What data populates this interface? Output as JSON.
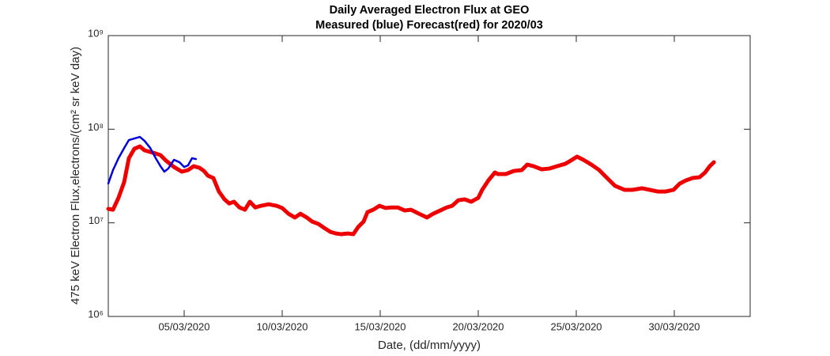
{
  "chart_data": {
    "type": "line",
    "title": "Daily Averaged Electron Flux at GEO",
    "subtitle": "Measured (blue) Forecast(red) for 2020/03",
    "x_label": "Date, (dd/mm/yyyy)",
    "y_label": "475 keV Electron Flux,electrons/(cm² sr keV day)",
    "log_y": true,
    "xlim": [
      1.13,
      33.87
    ],
    "xticks": [
      {
        "value": 5,
        "label": "05/03/2020"
      },
      {
        "value": 10,
        "label": "10/03/2020"
      },
      {
        "value": 15,
        "label": "15/03/2020"
      },
      {
        "value": 20,
        "label": "20/03/2020"
      },
      {
        "value": 25,
        "label": "25/03/2020"
      },
      {
        "value": 30,
        "label": "30/03/2020"
      }
    ],
    "ylim": [
      1000000,
      1000000000
    ],
    "yticks": [
      {
        "value": 1000000,
        "label": "10⁶"
      },
      {
        "value": 10000000,
        "label": "10⁷"
      },
      {
        "value": 100000000,
        "label": "10⁸"
      },
      {
        "value": 1000000000,
        "label": "10⁹"
      }
    ],
    "series": [
      {
        "name": "Measured",
        "color": "#0000dd",
        "width": 2.5,
        "x": [
          1.13,
          1.37,
          1.65,
          1.94,
          2.18,
          2.46,
          2.74,
          2.98,
          3.27,
          3.55,
          3.79,
          3.99,
          4.19,
          4.48,
          4.76,
          5.0,
          5.2,
          5.4,
          5.6
        ],
        "values": [
          26300000,
          36600000,
          49000000,
          63000000,
          76600000,
          79600000,
          82800000,
          75100000,
          63000000,
          49000000,
          40300000,
          35200000,
          38000000,
          47100000,
          44400000,
          39500000,
          41100000,
          49000000,
          48000000
        ]
      },
      {
        "name": "Forecast",
        "color": "#ee0000",
        "width": 5,
        "x": [
          1.13,
          1.37,
          1.65,
          1.94,
          2.18,
          2.46,
          2.74,
          2.98,
          3.27,
          3.55,
          3.79,
          4.07,
          4.48,
          4.88,
          5.2,
          5.48,
          5.77,
          6.01,
          6.21,
          6.49,
          6.77,
          7.06,
          7.3,
          7.54,
          7.82,
          8.1,
          8.35,
          8.63,
          8.91,
          9.31,
          9.72,
          10.0,
          10.32,
          10.65,
          10.93,
          11.25,
          11.53,
          11.85,
          12.14,
          12.46,
          12.74,
          13.02,
          13.35,
          13.63,
          13.87,
          14.15,
          14.35,
          14.64,
          14.96,
          15.28,
          15.56,
          15.89,
          16.25,
          16.57,
          16.98,
          17.38,
          17.7,
          18.06,
          18.39,
          18.67,
          18.99,
          19.31,
          19.64,
          20.0,
          20.2,
          20.52,
          20.85,
          21.01,
          21.41,
          21.81,
          22.22,
          22.5,
          22.82,
          23.23,
          23.63,
          24.03,
          24.44,
          24.72,
          25.04,
          25.36,
          25.77,
          26.17,
          26.57,
          26.98,
          27.46,
          27.86,
          28.35,
          28.75,
          29.15,
          29.56,
          29.96,
          30.28,
          30.6,
          30.93,
          31.29,
          31.57,
          31.81,
          32.02
        ],
        "values": [
          14100000,
          13800000,
          18500000,
          27300000,
          49000000,
          61800000,
          65500000,
          59500000,
          57200000,
          55000000,
          52900000,
          46200000,
          39500000,
          35200000,
          36600000,
          40300000,
          38800000,
          35800000,
          31900000,
          30100000,
          21600000,
          17800000,
          16100000,
          16800000,
          14600000,
          13800000,
          16800000,
          14600000,
          15200000,
          15800000,
          15200000,
          14400000,
          12500000,
          11400000,
          12500000,
          11400000,
          10300000,
          9730000,
          8830000,
          8000000,
          7700000,
          7560000,
          7700000,
          7560000,
          9000000,
          10300000,
          13000000,
          13800000,
          15200000,
          14400000,
          14600000,
          14600000,
          13550000,
          13800000,
          12500000,
          11400000,
          12500000,
          13550000,
          14600000,
          15200000,
          17450000,
          17800000,
          16800000,
          18500000,
          22500000,
          28400000,
          34500000,
          33200000,
          33200000,
          35800000,
          36600000,
          41900000,
          40300000,
          37300000,
          38000000,
          40300000,
          42700000,
          46200000,
          50900000,
          47100000,
          41900000,
          36600000,
          30100000,
          24800000,
          22500000,
          22500000,
          23400000,
          22500000,
          21600000,
          21600000,
          22500000,
          26300000,
          28400000,
          30100000,
          30700000,
          34500000,
          40300000,
          44400000
        ]
      }
    ]
  }
}
